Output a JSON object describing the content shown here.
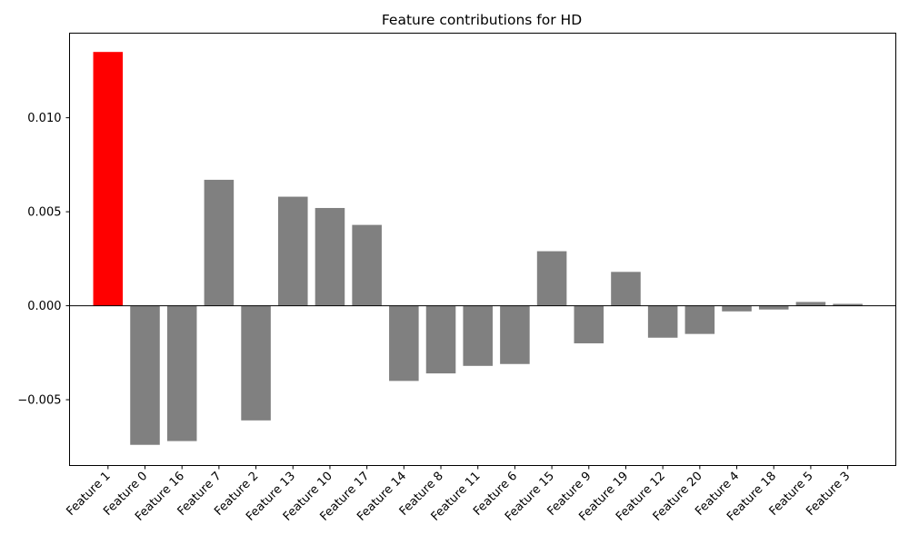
{
  "chart_data": {
    "type": "bar",
    "title": "Feature contributions for HD",
    "xlabel": "",
    "ylabel": "",
    "categories": [
      "Feature 1",
      "Feature 0",
      "Feature 16",
      "Feature 7",
      "Feature 2",
      "Feature 13",
      "Feature 10",
      "Feature 17",
      "Feature 14",
      "Feature 8",
      "Feature 11",
      "Feature 6",
      "Feature 15",
      "Feature 9",
      "Feature 19",
      "Feature 12",
      "Feature 20",
      "Feature 4",
      "Feature 18",
      "Feature 5",
      "Feature 3"
    ],
    "values": [
      0.0135,
      -0.0074,
      -0.0072,
      0.0067,
      -0.0061,
      0.0058,
      0.0052,
      0.0043,
      -0.004,
      -0.0036,
      -0.0032,
      -0.0031,
      0.0029,
      -0.002,
      0.0018,
      -0.0017,
      -0.0015,
      -0.0003,
      -0.0002,
      0.0002,
      0.0001
    ],
    "highlight_index": 0,
    "colors": {
      "highlight": "#ff0000",
      "default": "#808080",
      "zero_line": "#000000",
      "axes": "#000000"
    },
    "yticks": [
      -0.005,
      0.0,
      0.005,
      0.01
    ],
    "ytick_labels": [
      "−0.005",
      "0.000",
      "0.005",
      "0.010"
    ],
    "ylim": [
      -0.0085,
      0.0145
    ],
    "xlim": [
      -1.04,
      21.3
    ],
    "grid": false,
    "legend": "none"
  }
}
